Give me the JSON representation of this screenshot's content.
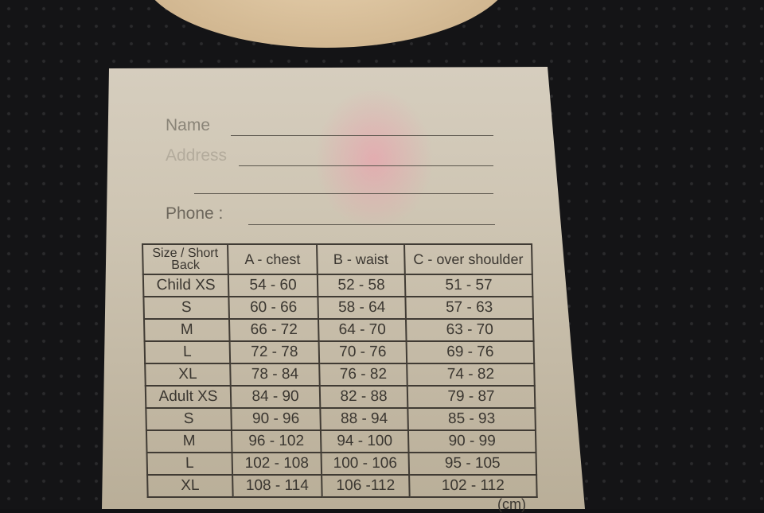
{
  "label": {
    "form": {
      "name": "Name",
      "address": "Address",
      "phone": "Phone :"
    },
    "table": {
      "headers": [
        "Size / Short Back",
        "A - chest",
        "B - waist",
        "C - over shoulder"
      ],
      "rows": [
        [
          "Child XS",
          "54 - 60",
          "52 - 58",
          "51 - 57"
        ],
        [
          "S",
          "60 - 66",
          "58 - 64",
          "57 - 63"
        ],
        [
          "M",
          "66 - 72",
          "64 - 70",
          "63 - 70"
        ],
        [
          "L",
          "72 - 78",
          "70 - 76",
          "69 - 76"
        ],
        [
          "XL",
          "78 - 84",
          "76 - 82",
          "74 - 82"
        ],
        [
          "Adult XS",
          "84 - 90",
          "82 - 88",
          "79 - 87"
        ],
        [
          "S",
          "90 - 96",
          "88 - 94",
          "85 - 93"
        ],
        [
          "M",
          "96 - 102",
          "94 - 100",
          "90 - 99"
        ],
        [
          "L",
          "102 - 108",
          "100 - 106",
          "95 - 105"
        ],
        [
          "XL",
          "108 - 114",
          "106 -112",
          "102 - 112"
        ]
      ],
      "unit": "(cm)"
    }
  }
}
